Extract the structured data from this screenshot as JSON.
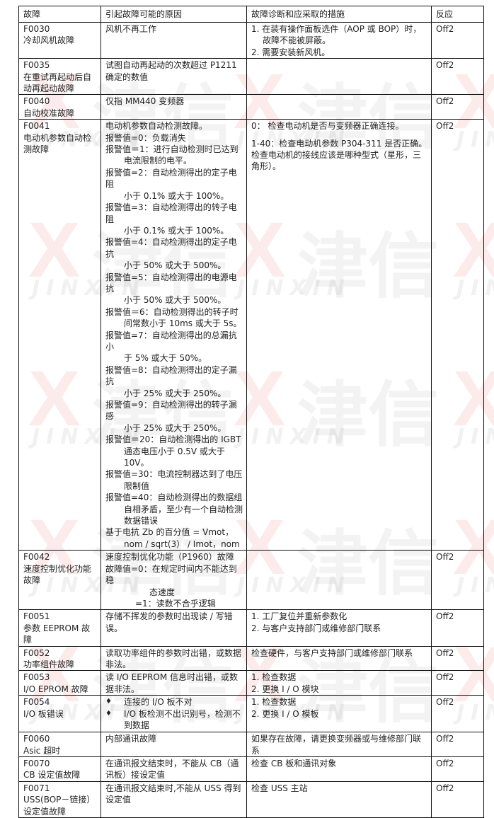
{
  "watermark": {
    "logo_cn": "津信",
    "logo_en": "JINXIN",
    "logo_mark": "X"
  },
  "headers": [
    "故障",
    "引起故障可能的原因",
    "故障诊断和应采取的措施",
    "反应"
  ],
  "rows": [
    {
      "code": "F0030",
      "name": [
        "冷却风机故障"
      ],
      "cause": [
        [
          "风机不再工作"
        ]
      ],
      "action": [
        [
          "1. 在装有操作面板选件（AOP 或 BOP）时，",
          "故障不能被屏蔽。"
        ],
        [
          "2. 需要安装新风机。"
        ]
      ],
      "reaction": "Off2"
    },
    {
      "code": "F0035",
      "name": [
        "在重试再起动后自",
        "动再起动故障"
      ],
      "cause": [
        [
          "试图自动再起动的次数超过 P1211"
        ],
        [
          "确定的数值"
        ]
      ],
      "action": [],
      "reaction": "Off2"
    },
    {
      "code": "F0040",
      "name": [
        "自动校准故障"
      ],
      "cause": [
        [
          "仅指 MM440 变频器"
        ]
      ],
      "action": [],
      "reaction": "Off2"
    },
    {
      "code": "F0041",
      "name": [
        "电动机参数自动检",
        "测故障"
      ],
      "cause": [
        [
          "电动机参数自动检测故障。"
        ],
        [
          "报警值=0：负载消失"
        ],
        [
          "报警值＝1：进行自动检测时已达到",
          "电流限制的电平。"
        ],
        [
          "报警值=2：自动检测得出的定子电阻",
          "小于 0.1% 或大于 100%。"
        ],
        [
          "报警值=3：自动检测得出的转子电阻",
          "小于 0.1% 或大于 100%。"
        ],
        [
          "报警值=4：自动检测得出的定子电抗",
          "小于 50% 或大于 500%。"
        ],
        [
          "报警值=5：自动检测得出的电源电抗",
          "小于 50% 或大于 500%。"
        ],
        [
          "报警值＝6：自动检测得出的转子时",
          "间常数小于 10ms 或大于 5s。"
        ],
        [
          "报警值=7：自动检测得出的总漏抗小",
          "于 5% 或大于 50%。"
        ],
        [
          "报警值=8：自动检测得出的定子漏抗",
          "小于 25% 或大于 250%。"
        ],
        [
          "报警值=9：自动检测得出的转子漏感",
          "小于 25% 或大于 250%。"
        ],
        [
          "报警值＝20：自动检测得出的 IGBT",
          "通态电压小于 0.5V 或大于 10V。"
        ],
        [
          "报警值=30：电流控制器达到了电压",
          "限制值"
        ],
        [
          "报警值=40：自动检测得出的数据组",
          "自相矛盾，至少有一个自动检测",
          "数据错误"
        ],
        [
          "基于电抗 Zb 的百分值 = Vmot，",
          "nom / sqrt(3） / Imot，nom"
        ]
      ],
      "action": [
        [
          "0： 检查电动机是否与变频器正确连接。"
        ],
        [
          "1-40：检查电动机参数 P304-311 是否正确。"
        ],
        [
          "检查电动机的接线应该是哪种型式（星形，三"
        ],
        [
          "角形）。"
        ]
      ],
      "reaction": "Off2"
    },
    {
      "code": "F0042",
      "name": [
        "速度控制优化功能",
        "故障"
      ],
      "cause": [
        [
          "速度控制优化功能（P1960）故障"
        ],
        [
          "故障值=0：在规定时间内不能达到稳"
        ]
      ],
      "cause_extra": [
        "态速度",
        "=1：读数不合乎逻辑"
      ],
      "action": [],
      "reaction": "Off2"
    },
    {
      "code": "F0051",
      "name": [
        "参数 EEPROM 故",
        "障"
      ],
      "cause": [
        [
          "存储不挥发的参数时出现读 / 写错"
        ],
        [
          "误。"
        ]
      ],
      "action": [
        [
          "1. 工厂复位并重新参数化"
        ],
        [
          "2. 与客户支持部门或维修部门联系"
        ]
      ],
      "reaction": "Off2"
    },
    {
      "code": "F0052",
      "name": [
        "功率组件故障"
      ],
      "cause": [
        [
          "读取功率组件的参数时出错，或数据"
        ],
        [
          "非法。"
        ]
      ],
      "action": [
        [
          "检查硬件，与客户支持部门或维修部门联系"
        ]
      ],
      "reaction": "Off2"
    },
    {
      "code": "F0053",
      "name": [
        "I/O EPROM 故障"
      ],
      "cause": [
        [
          "读 I/O EEPROM 信息时出错，或数"
        ],
        [
          "据非法。"
        ]
      ],
      "action": [
        [
          "1. 检查数据"
        ],
        [
          "2. 更换 I / O 模块"
        ]
      ],
      "reaction": "Off2"
    },
    {
      "code": "F0054",
      "name": [
        "I/O 板错误"
      ],
      "bullets": [
        [
          "连接的 I/O 板不对"
        ],
        [
          "I/O 板检测不出识别号，检测不",
          "到数据"
        ]
      ],
      "bullet_glyph": "♦",
      "cause": [],
      "action": [
        [
          "1. 检查数据"
        ],
        [
          "2. 更换 I / O 模板"
        ]
      ],
      "reaction": "Off2"
    },
    {
      "code": "F0060",
      "name": [
        "Asic 超时"
      ],
      "cause": [
        [
          "内部通讯故障"
        ]
      ],
      "action": [
        [
          "如果存在故障，请更换变频器或与维修部门联"
        ],
        [
          "系"
        ]
      ],
      "reaction": "Off2"
    },
    {
      "code": "F0070",
      "name": [
        "CB 设定值故障"
      ],
      "cause": [
        [
          "在通讯报文结束时，不能从 CB（通"
        ],
        [
          "讯板）接设定值"
        ]
      ],
      "action": [
        [
          "检查 CB 板和通讯对象"
        ]
      ],
      "reaction": "Off2"
    },
    {
      "code": "F0071",
      "name": [
        "USS(BOP－链接）",
        "设定值故障"
      ],
      "cause": [
        [
          "在通讯报文结束时,不能从 USS 得到"
        ],
        [
          "设定值"
        ]
      ],
      "action": [
        [
          "检查 USS 主站"
        ]
      ],
      "reaction": "Off2"
    }
  ]
}
